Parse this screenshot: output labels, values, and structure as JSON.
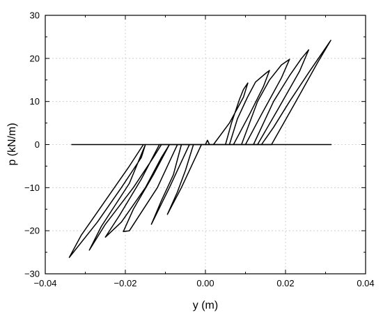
{
  "chart_data": {
    "type": "line",
    "title": "",
    "xlabel": "y (m)",
    "ylabel": "p (kN/m)",
    "xlim": [
      -0.04,
      0.04
    ],
    "ylim": [
      -30,
      30
    ],
    "xticks": [
      -0.04,
      -0.02,
      0.0,
      0.02,
      0.04
    ],
    "yticks": [
      -30,
      -20,
      -10,
      0,
      10,
      20,
      30
    ],
    "xtick_labels": [
      "−0.04",
      "−0.02",
      "0.00",
      "0.02",
      "0.04"
    ],
    "ytick_labels": [
      "−30",
      "−20",
      "−10",
      "0",
      "10",
      "20",
      "30"
    ],
    "grid": true,
    "grid_style": "dotted",
    "line_color": "#000000",
    "series": [
      {
        "values": [
          [
            0.0,
            0.0
          ],
          [
            0.0005,
            1.0
          ],
          [
            0.001,
            0.0
          ],
          [
            0.005,
            0.0
          ],
          [
            0.0065,
            5.0
          ],
          [
            0.0085,
            10.5
          ],
          [
            0.0095,
            12.8
          ],
          [
            0.0106,
            14.3
          ],
          [
            0.0095,
            11.0
          ],
          [
            0.006,
            5.0
          ],
          [
            0.002,
            0.0
          ],
          [
            -0.001,
            0.0
          ],
          [
            -0.003,
            -4.0
          ],
          [
            -0.006,
            -10.0
          ],
          [
            -0.0095,
            -16.2
          ],
          [
            -0.007,
            -11.0
          ],
          [
            -0.005,
            -6.0
          ],
          [
            -0.003,
            0.0
          ],
          [
            0.006,
            0.0
          ],
          [
            0.008,
            6.0
          ],
          [
            0.0105,
            11.0
          ],
          [
            0.0125,
            14.5
          ],
          [
            0.015,
            16.5
          ],
          [
            0.016,
            17.2
          ],
          [
            0.0145,
            13.5
          ],
          [
            0.011,
            7.0
          ],
          [
            0.007,
            0.0
          ],
          [
            -0.004,
            0.0
          ],
          [
            -0.006,
            -4.0
          ],
          [
            -0.009,
            -10.0
          ],
          [
            -0.0135,
            -18.5
          ],
          [
            -0.011,
            -13.0
          ],
          [
            -0.008,
            -7.0
          ],
          [
            -0.006,
            0.0
          ],
          [
            0.009,
            0.0
          ],
          [
            0.011,
            5.0
          ],
          [
            0.013,
            10.0
          ],
          [
            0.016,
            15.0
          ],
          [
            0.019,
            18.5
          ],
          [
            0.021,
            19.8
          ],
          [
            0.019,
            15.5
          ],
          [
            0.014,
            7.0
          ],
          [
            0.01,
            0.0
          ],
          [
            -0.007,
            0.0
          ],
          [
            -0.009,
            -4.0
          ],
          [
            -0.012,
            -10.0
          ],
          [
            -0.019,
            -20.0
          ],
          [
            -0.0205,
            -20.2
          ],
          [
            -0.018,
            -15.0
          ],
          [
            -0.013,
            -7.0
          ],
          [
            -0.009,
            0.0
          ],
          [
            0.012,
            0.0
          ],
          [
            0.014,
            4.0
          ],
          [
            0.017,
            10.0
          ],
          [
            0.021,
            16.0
          ],
          [
            0.024,
            20.0
          ],
          [
            0.0258,
            22.0
          ],
          [
            0.0235,
            17.0
          ],
          [
            0.018,
            8.0
          ],
          [
            0.013,
            0.0
          ],
          [
            -0.009,
            0.0
          ],
          [
            -0.011,
            -3.0
          ],
          [
            -0.015,
            -10.0
          ],
          [
            -0.021,
            -18.0
          ],
          [
            -0.025,
            -21.5
          ],
          [
            -0.0215,
            -16.5
          ],
          [
            -0.016,
            -8.0
          ],
          [
            -0.0115,
            0.0
          ],
          [
            0.014,
            0.0
          ],
          [
            0.017,
            4.0
          ],
          [
            0.021,
            10.0
          ],
          [
            0.026,
            17.0
          ],
          [
            0.0313,
            24.2
          ],
          [
            0.028,
            19.0
          ],
          [
            0.022,
            9.0
          ],
          [
            0.0165,
            0.0
          ],
          [
            -0.011,
            0.0
          ],
          [
            -0.013,
            -3.0
          ],
          [
            -0.018,
            -10.0
          ],
          [
            -0.025,
            -18.5
          ],
          [
            -0.029,
            -24.5
          ],
          [
            -0.026,
            -19.0
          ],
          [
            -0.019,
            -9.0
          ],
          [
            -0.015,
            0.0
          ],
          [
            -0.016,
            -3.0
          ],
          [
            -0.021,
            -10.0
          ],
          [
            -0.027,
            -18.0
          ],
          [
            -0.034,
            -26.2
          ],
          [
            -0.031,
            -21.0
          ],
          [
            -0.025,
            -13.0
          ],
          [
            -0.019,
            -5.0
          ],
          [
            -0.0155,
            0.0
          ]
        ]
      },
      {
        "values": [
          [
            -0.0335,
            0.0
          ],
          [
            0.0315,
            0.0
          ]
        ]
      }
    ]
  }
}
